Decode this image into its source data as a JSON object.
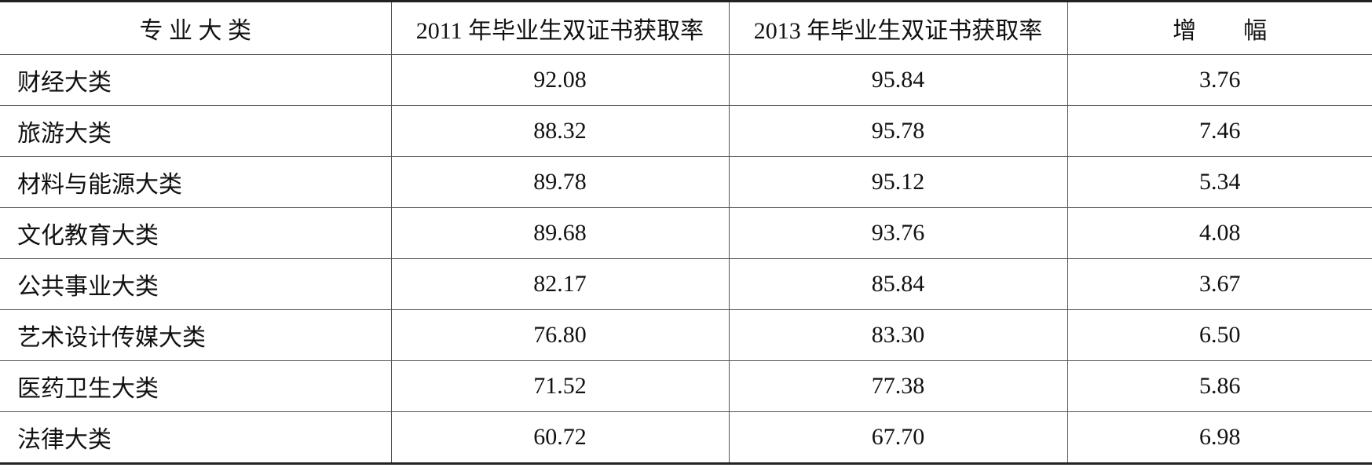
{
  "table": {
    "header": [
      "专 业 大 类",
      "2011 年毕业生双证书获取率",
      "2013 年毕业生双证书获取率",
      "增　　幅"
    ],
    "rows": [
      [
        "财经大类",
        "92.08",
        "95.84",
        "3.76"
      ],
      [
        "旅游大类",
        "88.32",
        "95.78",
        "7.46"
      ],
      [
        "材料与能源大类",
        "89.78",
        "95.12",
        "5.34"
      ],
      [
        "文化教育大类",
        "89.68",
        "93.76",
        "4.08"
      ],
      [
        "公共事业大类",
        "82.17",
        "85.84",
        "3.67"
      ],
      [
        "艺术设计传媒大类",
        "76.80",
        "83.30",
        "6.50"
      ],
      [
        "医药卫生大类",
        "71.52",
        "77.38",
        "5.86"
      ],
      [
        "法律大类",
        "60.72",
        "67.70",
        "6.98"
      ]
    ]
  }
}
